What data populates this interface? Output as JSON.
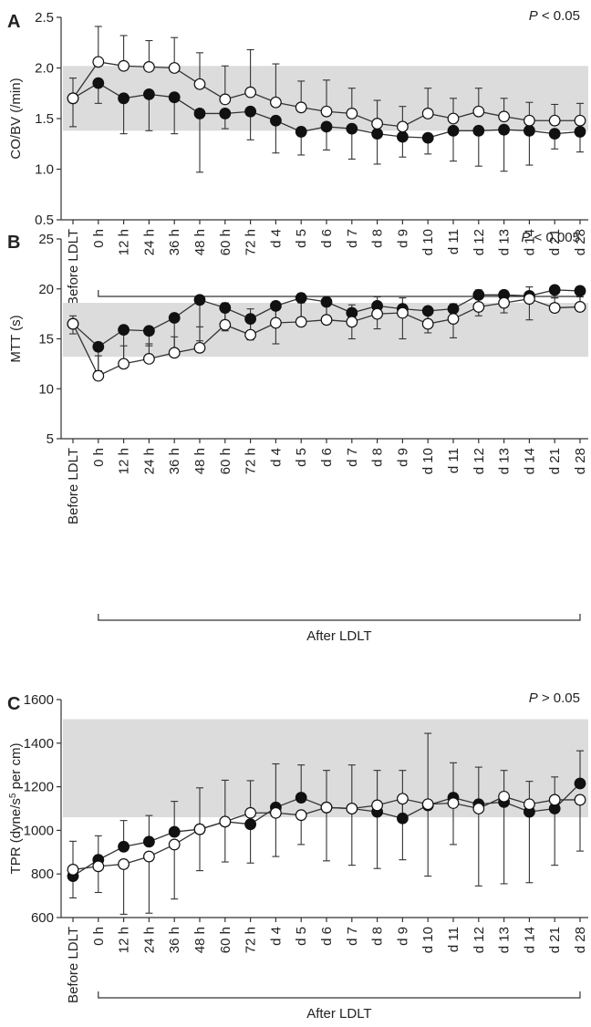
{
  "chart_data": [
    {
      "type": "line",
      "panel": "A",
      "ylabel": "CO/BV (/min)",
      "ylim": [
        0.5,
        2.5
      ],
      "yticks": [
        "0.5",
        "1.0",
        "1.5",
        "2.0",
        "2.5"
      ],
      "reference_band": [
        1.38,
        2.02
      ],
      "p_value": {
        "prefix": "P",
        "text": " < 0.05"
      },
      "group_label": "After LDLT",
      "categories": [
        "Before LDLT",
        "0 h",
        "12 h",
        "24 h",
        "36 h",
        "48 h",
        "60 h",
        "72 h",
        "d 4",
        "d 5",
        "d 6",
        "d 7",
        "d 8",
        "d 9",
        "d 10",
        "d 11",
        "d 12",
        "d 13",
        "d 14",
        "d 21",
        "d 28"
      ],
      "series": [
        {
          "marker": "filled",
          "values": [
            1.7,
            1.85,
            1.7,
            1.74,
            1.71,
            1.55,
            1.55,
            1.57,
            1.48,
            1.37,
            1.42,
            1.4,
            1.35,
            1.32,
            1.31,
            1.38,
            1.38,
            1.39,
            1.38,
            1.35,
            1.37
          ],
          "err": [
            0.28,
            0.2,
            0.35,
            0.36,
            0.36,
            0.58,
            0.15,
            0.28,
            0.32,
            0.23,
            0.23,
            0.3,
            0.3,
            0.2,
            0.16,
            0.3,
            0.35,
            0.41,
            0.34,
            0.15,
            0.2
          ]
        },
        {
          "marker": "open",
          "values": [
            1.7,
            2.06,
            2.02,
            2.01,
            2.0,
            1.84,
            1.69,
            1.76,
            1.66,
            1.61,
            1.57,
            1.55,
            1.45,
            1.42,
            1.55,
            1.5,
            1.57,
            1.52,
            1.48,
            1.48,
            1.48
          ],
          "err": [
            0.2,
            0.35,
            0.3,
            0.26,
            0.3,
            0.31,
            0.33,
            0.42,
            0.38,
            0.26,
            0.31,
            0.25,
            0.23,
            0.2,
            0.25,
            0.2,
            0.23,
            0.18,
            0.18,
            0.16,
            0.17
          ]
        }
      ]
    },
    {
      "type": "line",
      "panel": "B",
      "ylabel": "MTT (s)",
      "ylim": [
        5,
        25
      ],
      "yticks": [
        "5",
        "10",
        "15",
        "20",
        "25"
      ],
      "reference_band": [
        13.2,
        18.6
      ],
      "p_value": {
        "prefix": "P",
        "text": " < 0.005"
      },
      "group_label": "After LDLT",
      "categories": [
        "Before LDLT",
        "0 h",
        "12 h",
        "24 h",
        "36 h",
        "48 h",
        "60 h",
        "72 h",
        "d 4",
        "d 5",
        "d 6",
        "d 7",
        "d 8",
        "d 9",
        "d 10",
        "d 11",
        "d 12",
        "d 13",
        "d 14",
        "d 21",
        "d 28"
      ],
      "series": [
        {
          "marker": "filled",
          "values": [
            16.5,
            14.2,
            15.9,
            15.8,
            17.1,
            18.9,
            18.1,
            17.0,
            18.3,
            19.1,
            18.7,
            17.6,
            18.3,
            18.0,
            17.8,
            18.0,
            19.4,
            19.4,
            19.3,
            19.9,
            19.8
          ],
          "err": [
            1.0,
            2.4,
            3.8,
            1.5,
            3.6,
            4.1,
            2.3,
            2.1,
            3.8,
            2.1,
            1.4,
            2.6,
            2.3,
            3.0,
            2.2,
            2.9,
            2.1,
            1.8,
            2.4,
            0.8,
            1.3
          ]
        },
        {
          "marker": "open",
          "values": [
            16.5,
            11.3,
            12.5,
            13.0,
            13.6,
            14.1,
            16.4,
            15.4,
            16.6,
            16.7,
            16.9,
            16.7,
            17.5,
            17.6,
            16.5,
            17.0,
            18.2,
            18.6,
            19.0,
            18.1,
            18.2
          ],
          "err": [
            0.8,
            2.0,
            1.8,
            1.5,
            1.6,
            2.1,
            2.2,
            2.6,
            2.1,
            1.9,
            1.8,
            1.7,
            1.7,
            1.5,
            1.7,
            1.5,
            1.7,
            1.2,
            1.2,
            1.0,
            1.0
          ]
        }
      ]
    },
    {
      "type": "line",
      "panel": "C",
      "ylabel": "TPR (dyne/s",
      "ylabel_sup": "5",
      "ylabel_tail": " per cm)",
      "ylim": [
        600,
        1600
      ],
      "yticks": [
        "600",
        "800",
        "1000",
        "1200",
        "1400",
        "1600"
      ],
      "reference_band": [
        1060,
        1510
      ],
      "p_value": {
        "prefix": "P",
        "text": " > 0.05"
      },
      "group_label": "After LDLT",
      "categories": [
        "Before LDLT",
        "0 h",
        "12 h",
        "24 h",
        "36 h",
        "48 h",
        "60 h",
        "72 h",
        "d 4",
        "d 5",
        "d 6",
        "d 7",
        "d 8",
        "d 9",
        "d 10",
        "d 11",
        "d 12",
        "d 13",
        "d 14",
        "d 21",
        "d 28"
      ],
      "series": [
        {
          "marker": "filled",
          "values": [
            790,
            865,
            925,
            948,
            993,
            1005,
            1040,
            1028,
            1105,
            1150,
            1105,
            1100,
            1085,
            1055,
            1115,
            1150,
            1120,
            1130,
            1085,
            1100,
            1215
          ],
          "err": [
            160,
            110,
            120,
            120,
            140,
            190,
            190,
            200,
            200,
            150,
            170,
            200,
            190,
            220,
            330,
            160,
            170,
            145,
            140,
            145,
            150
          ]
        },
        {
          "marker": "open",
          "values": [
            820,
            835,
            845,
            880,
            935,
            1005,
            1040,
            1080,
            1080,
            1070,
            1105,
            1100,
            1115,
            1145,
            1120,
            1125,
            1100,
            1155,
            1120,
            1140,
            1140
          ],
          "err": [
            130,
            120,
            230,
            260,
            250,
            190,
            185,
            230,
            200,
            135,
            245,
            260,
            290,
            280,
            330,
            190,
            355,
            400,
            360,
            300,
            235
          ]
        }
      ]
    }
  ]
}
